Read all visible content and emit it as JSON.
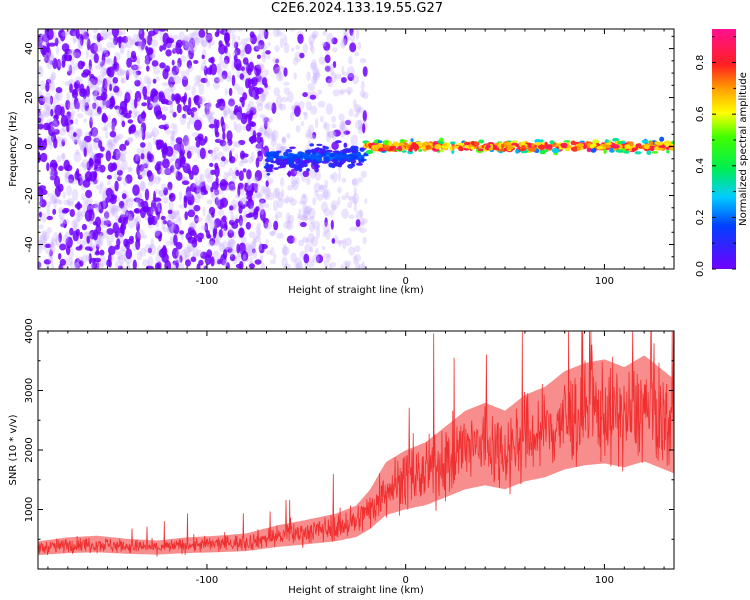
{
  "figure_title": "C2E6.2024.133.19.55.G27",
  "colors": {
    "spectrogram_strong": "#7000ff",
    "spectrogram_weak": "#d8c8ff",
    "snr_line": "#f03030",
    "axes": "#000000"
  },
  "chart_data": [
    {
      "type": "heatmap",
      "title": "",
      "xlabel": "Height of straight line (km)",
      "ylabel": "Frequency (Hz)",
      "xlim": [
        -185,
        135
      ],
      "ylim": [
        -50,
        48
      ],
      "x_ticks": [
        -100,
        0,
        100
      ],
      "y_ticks": [
        -40,
        -20,
        0,
        20,
        40
      ],
      "grid": false,
      "colorbar": {
        "label": "Normalized spectral amplitude",
        "range": [
          0,
          0.93
        ],
        "ticks": [
          "0.0",
          "0.2",
          "0.4",
          "0.6",
          "0.8"
        ],
        "tick_values": [
          0,
          0.2,
          0.4,
          0.6,
          0.8
        ],
        "colormap": "gist_ncar-like (purple, blue, cyan, green, yellow, red, magenta)"
      },
      "regions": [
        {
          "x_range": [
            -185,
            -70
          ],
          "freq_range": [
            -50,
            48
          ],
          "amplitude": 0.05,
          "description": "broadband noise"
        },
        {
          "x_range": [
            -70,
            -20
          ],
          "freq_range": [
            -50,
            48
          ],
          "amplitude": 0.03,
          "description": "sparse noise"
        },
        {
          "x_range": [
            -70,
            -20
          ],
          "freq_range": [
            -12,
            4
          ],
          "amplitude": 0.2,
          "description": "onset of signal"
        },
        {
          "x_range": [
            -20,
            135
          ],
          "freq_range": [
            -4,
            4
          ],
          "amplitude": 0.85,
          "description": "narrow line near 0 Hz"
        }
      ]
    },
    {
      "type": "line",
      "title": "",
      "xlabel": "Height of straight line (km)",
      "ylabel": "SNR (10 * v/v)",
      "xlim": [
        -185,
        135
      ],
      "ylim": [
        0,
        4000
      ],
      "x_ticks": [
        -100,
        0,
        100
      ],
      "y_ticks": [
        1000,
        2000,
        3000,
        4000
      ],
      "grid": false,
      "series": [
        {
          "x": [
            -185,
            -170,
            -155,
            -140,
            -125,
            -110,
            -95,
            -80,
            -65,
            -50,
            -35,
            -25,
            -18,
            -10,
            0,
            10,
            20,
            30,
            40,
            50,
            60,
            70,
            80,
            90,
            100,
            110,
            120,
            130,
            135
          ],
          "values": [
            350,
            400,
            420,
            380,
            360,
            400,
            420,
            450,
            550,
            620,
            700,
            800,
            1000,
            1350,
            1500,
            1600,
            1800,
            2000,
            2100,
            2000,
            2200,
            2300,
            2500,
            2600,
            2650,
            2550,
            2700,
            2500,
            2400
          ]
        }
      ]
    }
  ]
}
